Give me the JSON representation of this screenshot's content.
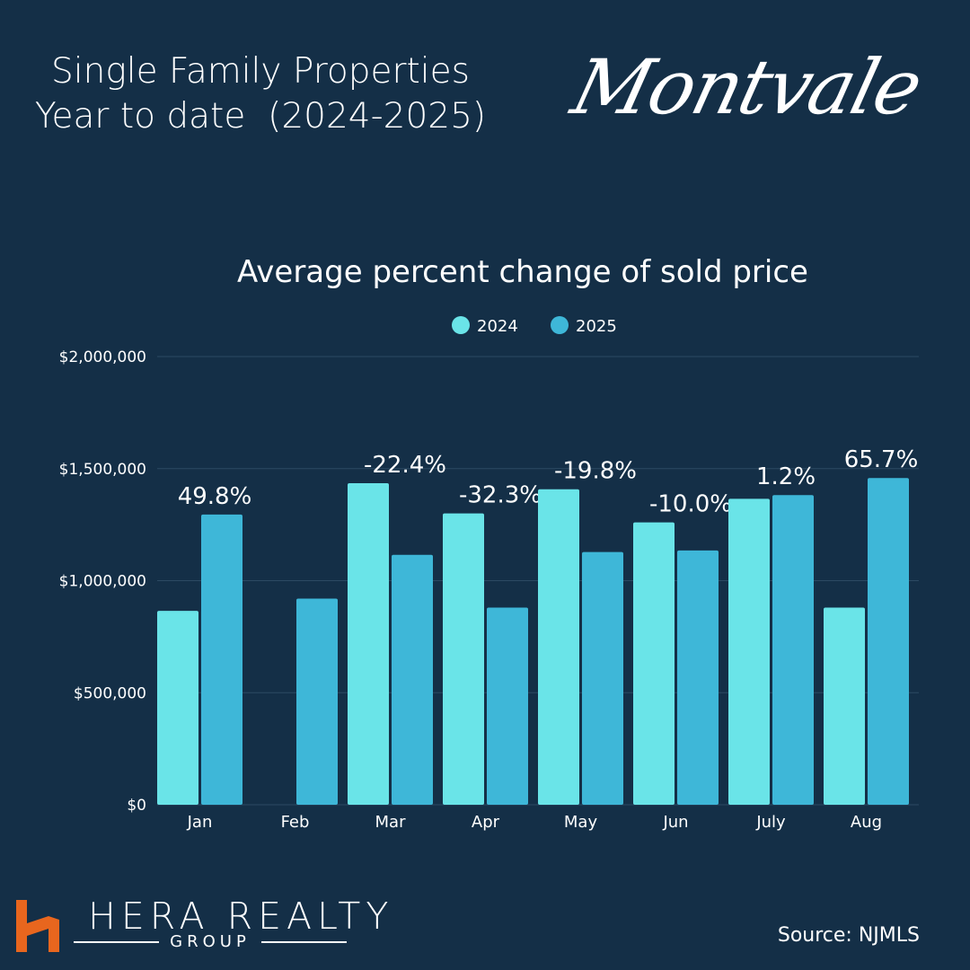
{
  "header": {
    "title_line1": "Single Family Properties",
    "title_line2": "Year to date  (2024-2025)",
    "town": "Montvale"
  },
  "footer": {
    "brand_name": "HERA REALTY",
    "brand_sub": "GROUP",
    "source": "Source: NJMLS"
  },
  "colors": {
    "background": "#142f47",
    "series_2024": "#6ae4e8",
    "series_2025": "#3eb7d8",
    "brand_orange": "#e8661e"
  },
  "chart_data": {
    "type": "bar",
    "title": "Average percent change of sold price",
    "categories": [
      "Jan",
      "Feb",
      "Mar",
      "Apr",
      "May",
      "Jun",
      "July",
      "Aug"
    ],
    "series": [
      {
        "name": "2024",
        "values": [
          865000,
          null,
          1435000,
          1300000,
          1408000,
          1260000,
          1365000,
          880000
        ]
      },
      {
        "name": "2025",
        "values": [
          1295000,
          920000,
          1115000,
          880000,
          1128000,
          1135000,
          1382000,
          1458000
        ]
      }
    ],
    "change_labels": [
      "49.8%",
      "",
      "-22.4%",
      "-32.3%",
      "-19.8%",
      "-10.0%",
      "1.2%",
      "65.7%"
    ],
    "yticks": [
      "$0",
      "$500,000",
      "$1,000,000",
      "$1,500,000",
      "$2,000,000"
    ],
    "ylim": [
      0,
      2000000
    ],
    "grid": true,
    "legend_position": "top-center"
  }
}
